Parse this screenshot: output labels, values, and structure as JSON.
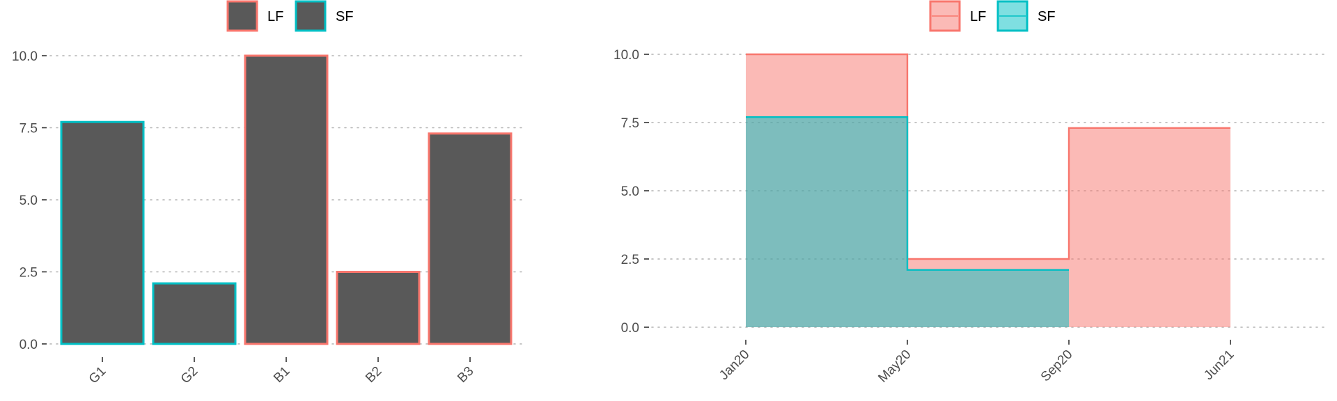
{
  "colors": {
    "LF": "#F8766D",
    "SF": "#00BFC4",
    "bar_fill": "#595959",
    "LF_area": "#F8766D",
    "SF_area": "#00BFC4"
  },
  "chart_data": [
    {
      "type": "bar",
      "title": "",
      "xlabel": "",
      "ylabel": "",
      "categories": [
        "G1",
        "G2",
        "B1",
        "B2",
        "B3"
      ],
      "values": [
        7.7,
        2.1,
        10.0,
        2.5,
        7.3
      ],
      "outline_group": [
        "SF",
        "SF",
        "LF",
        "LF",
        "LF"
      ],
      "ylim": [
        0,
        10
      ],
      "yticks": [
        "0.0",
        "2.5",
        "5.0",
        "7.5",
        "10.0"
      ],
      "grid": true,
      "legend": {
        "position": "top",
        "items": [
          "LF",
          "SF"
        ]
      }
    },
    {
      "type": "area",
      "title": "",
      "xlabel": "",
      "ylabel": "",
      "x_ticks": [
        "Jan20",
        "May20",
        "Sep20",
        "Jun21"
      ],
      "series": [
        {
          "name": "LF",
          "steps": [
            {
              "from": "Jan20",
              "to": "May20",
              "value": 10.0
            },
            {
              "from": "May20",
              "to": "Sep20",
              "value": 2.5
            },
            {
              "from": "Sep20",
              "to": "Jun21",
              "value": 7.3
            }
          ]
        },
        {
          "name": "SF",
          "steps": [
            {
              "from": "Jan20",
              "to": "May20",
              "value": 7.7
            },
            {
              "from": "May20",
              "to": "Sep20",
              "value": 2.1
            }
          ]
        }
      ],
      "ylim": [
        0,
        10
      ],
      "yticks": [
        "0.0",
        "2.5",
        "5.0",
        "7.5",
        "10.0"
      ],
      "grid": true,
      "legend": {
        "position": "top",
        "items": [
          "LF",
          "SF"
        ]
      }
    }
  ]
}
